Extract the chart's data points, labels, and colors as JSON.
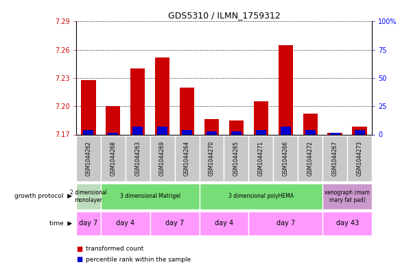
{
  "title": "GDS5310 / ILMN_1759312",
  "samples": [
    "GSM1044262",
    "GSM1044268",
    "GSM1044263",
    "GSM1044269",
    "GSM1044264",
    "GSM1044270",
    "GSM1044265",
    "GSM1044271",
    "GSM1044266",
    "GSM1044272",
    "GSM1044267",
    "GSM1044273"
  ],
  "red_values": [
    7.228,
    7.2,
    7.24,
    7.252,
    7.22,
    7.186,
    7.185,
    7.205,
    7.265,
    7.192,
    7.172,
    7.178
  ],
  "blue_heights": [
    0.005,
    0.002,
    0.008,
    0.008,
    0.005,
    0.003,
    0.003,
    0.005,
    0.008,
    0.005,
    0.002,
    0.005
  ],
  "ymin": 7.17,
  "ymax": 7.29,
  "yticks": [
    7.17,
    7.2,
    7.23,
    7.26,
    7.29
  ],
  "right_yticks": [
    0,
    25,
    50,
    75,
    100
  ],
  "bar_width": 0.6,
  "red_color": "#CC0000",
  "blue_color": "#0000CC",
  "sample_bg": "#C8C8C8",
  "gp_groups": [
    {
      "label": "2 dimensional\nmonolayer",
      "start": 0,
      "end": 0,
      "color": "#BBDDBB"
    },
    {
      "label": "3 dimensional Matrigel",
      "start": 1,
      "end": 4,
      "color": "#77DD77"
    },
    {
      "label": "3 dimensional polyHEMA",
      "start": 5,
      "end": 9,
      "color": "#77DD77"
    },
    {
      "label": "xenograph (mam\nmary fat pad)",
      "start": 10,
      "end": 11,
      "color": "#CC99CC"
    }
  ],
  "time_groups": [
    {
      "label": "day 7",
      "start": 0,
      "end": 0
    },
    {
      "label": "day 4",
      "start": 1,
      "end": 2
    },
    {
      "label": "day 7",
      "start": 3,
      "end": 4
    },
    {
      "label": "day 4",
      "start": 5,
      "end": 6
    },
    {
      "label": "day 7",
      "start": 7,
      "end": 9
    },
    {
      "label": "day 43",
      "start": 10,
      "end": 11
    }
  ],
  "time_color": "#FF99FF",
  "legend_items": [
    {
      "color": "#CC0000",
      "label": "transformed count"
    },
    {
      "color": "#0000CC",
      "label": "percentile rank within the sample"
    }
  ]
}
